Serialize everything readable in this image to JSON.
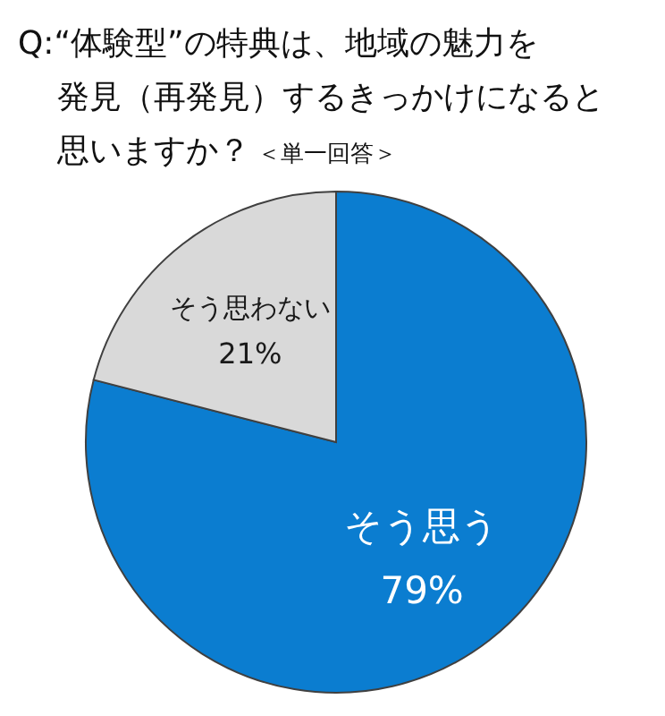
{
  "chart_data": {
    "type": "pie",
    "title": "Q:“体験型”の特典は、地域の魅力を発見（再発見）するきっかけになると思いますか？",
    "subtitle": "＜単一回答＞",
    "categories": [
      "そう思う",
      "そう思わない"
    ],
    "values": [
      79,
      21
    ],
    "value_labels": [
      "79%",
      "21%"
    ],
    "colors": [
      "#0b7dd0",
      "#d9d9d9"
    ]
  }
}
